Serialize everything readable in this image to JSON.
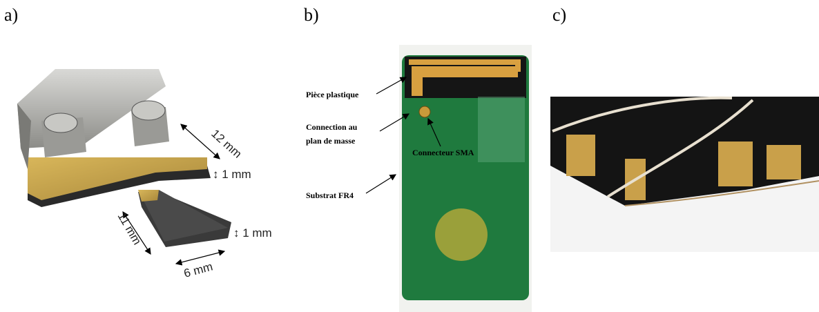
{
  "panels": [
    {
      "label": "a)",
      "annotations": [
        "12 mm",
        "↕ 1 mm",
        "11 mm",
        "↕ 1 mm",
        "6 mm"
      ]
    },
    {
      "label": "b)",
      "annotations": [
        "Pièce plastique",
        "Connection au",
        "plan de masse",
        "Connecteur SMA",
        "Substrat FR4"
      ]
    },
    {
      "label": "c)"
    }
  ]
}
